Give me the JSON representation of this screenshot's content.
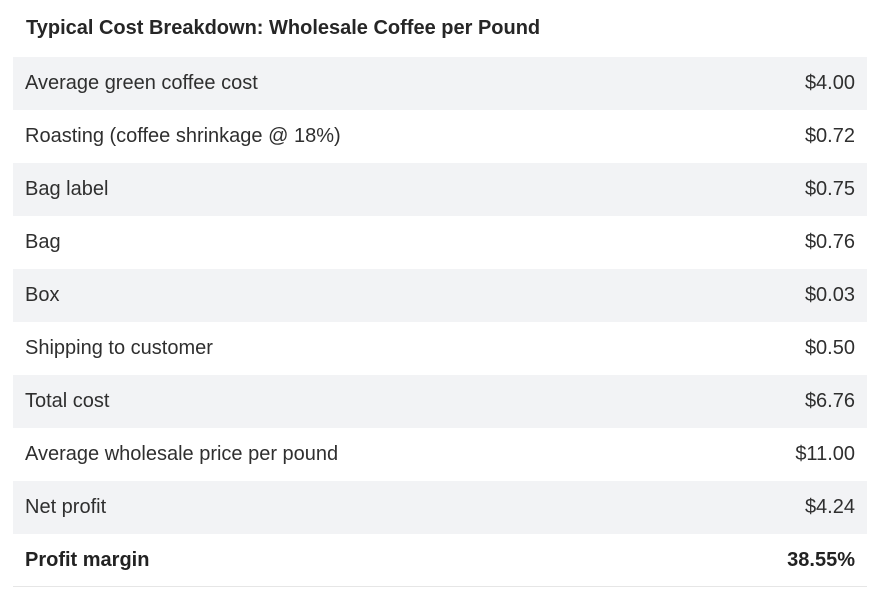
{
  "title": "Typical Cost Breakdown: Wholesale Coffee per Pound",
  "rows": [
    {
      "label": "Average green coffee cost",
      "value": "$4.00"
    },
    {
      "label": "Roasting (coffee shrinkage @ 18%)",
      "value": "$0.72"
    },
    {
      "label": "Bag label",
      "value": "$0.75"
    },
    {
      "label": "Bag",
      "value": "$0.76"
    },
    {
      "label": "Box",
      "value": "$0.03"
    },
    {
      "label": "Shipping to customer",
      "value": "$0.50"
    },
    {
      "label": "Total cost",
      "value": "$6.76"
    },
    {
      "label": "Average wholesale price per pound",
      "value": "$11.00"
    },
    {
      "label": "Net profit",
      "value": "$4.24"
    },
    {
      "label": "Profit margin",
      "value": "38.55%"
    }
  ]
}
